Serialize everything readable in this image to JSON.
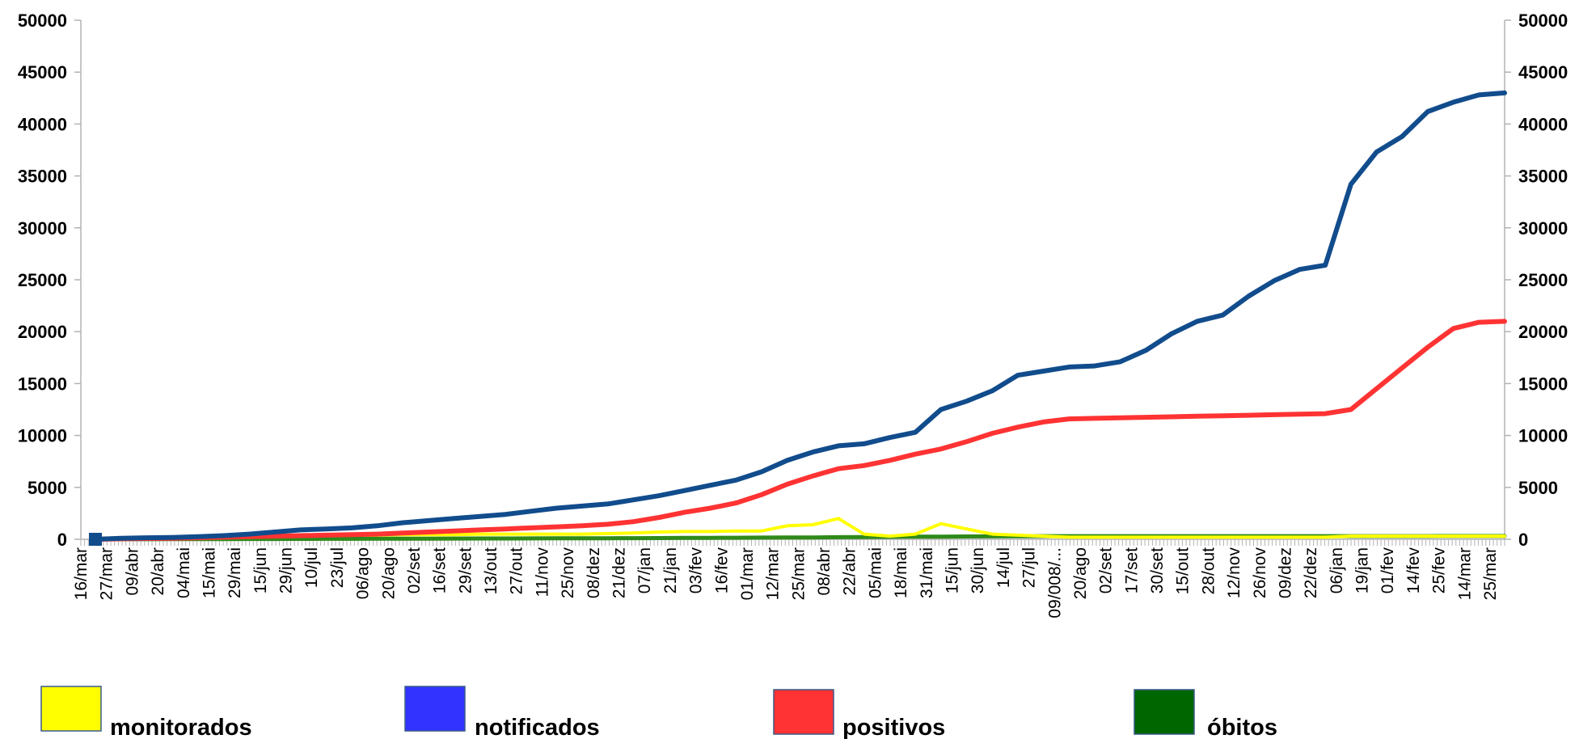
{
  "chart_data": {
    "type": "line",
    "title": "",
    "xlabel": "",
    "ylabel": "",
    "ylim": [
      0,
      50000
    ],
    "y_ticks": [
      0,
      5000,
      10000,
      15000,
      20000,
      25000,
      30000,
      35000,
      40000,
      45000,
      50000
    ],
    "y_axis_left": true,
    "y_axis_right": true,
    "grid": false,
    "legend_position": "bottom",
    "categories": [
      "16/mar",
      "27/mar",
      "09/abr",
      "20/abr",
      "04/mai",
      "15/mai",
      "29/mai",
      "15/jun",
      "29/jun",
      "10/jul",
      "23/jul",
      "06/ago",
      "20/ago",
      "02/set",
      "16/set",
      "29/set",
      "13/out",
      "27/out",
      "11/nov",
      "25/nov",
      "08/dez",
      "21/dez",
      "07/jan",
      "21/jan",
      "03/fev",
      "16/fev",
      "01/mar",
      "12/mar",
      "25/mar",
      "08/abr",
      "22/abr",
      "05/mai",
      "18/mai",
      "31/mai",
      "15/jun",
      "30/jun",
      "14/jul",
      "27/jul",
      "09/008/...",
      "20/ago",
      "02/set",
      "17/set",
      "30/set",
      "15/out",
      "28/out",
      "12/nov",
      "26/nov",
      "09/dez",
      "22/dez",
      "06/jan",
      "19/jan",
      "01/fev",
      "14/fev",
      "25/fev",
      "14/mar",
      "25/mar"
    ],
    "series": [
      {
        "name": "monitorados",
        "color": "#ffff00",
        "values": [
          0,
          150,
          150,
          150,
          150,
          200,
          250,
          300,
          350,
          350,
          400,
          400,
          450,
          450,
          450,
          500,
          500,
          500,
          500,
          500,
          550,
          600,
          700,
          750,
          750,
          800,
          800,
          1300,
          1400,
          2000,
          500,
          300,
          500,
          1500,
          1000,
          500,
          400,
          300,
          200,
          200,
          200,
          200,
          200,
          200,
          200,
          200,
          200,
          200,
          200,
          300,
          300,
          300,
          300,
          300,
          300,
          300
        ]
      },
      {
        "name": "notificados",
        "color": "#114c8c",
        "values": [
          0,
          100,
          150,
          180,
          250,
          350,
          500,
          700,
          900,
          1000,
          1100,
          1300,
          1600,
          1800,
          2000,
          2200,
          2400,
          2700,
          3000,
          3200,
          3400,
          3800,
          4200,
          4700,
          5200,
          5700,
          6500,
          7600,
          8400,
          9000,
          9200,
          9800,
          10300,
          12500,
          13300,
          14300,
          15800,
          16200,
          16600,
          16700,
          17100,
          18200,
          19800,
          21000,
          21600,
          23400,
          24900,
          26000,
          26400,
          34200,
          37300,
          38800,
          41200,
          42100,
          42800,
          43000
        ]
      },
      {
        "name": "positivos",
        "color": "#ff3333",
        "values": [
          0,
          50,
          80,
          100,
          150,
          200,
          250,
          300,
          350,
          400,
          450,
          500,
          600,
          700,
          800,
          900,
          1000,
          1100,
          1200,
          1300,
          1450,
          1700,
          2100,
          2600,
          3000,
          3500,
          4300,
          5300,
          6100,
          6800,
          7100,
          7600,
          8200,
          8700,
          9400,
          10200,
          10800,
          11300,
          11600,
          11650,
          11700,
          11750,
          11800,
          11850,
          11900,
          11950,
          12000,
          12050,
          12100,
          12500,
          14500,
          16500,
          18500,
          20300,
          20900,
          21000
        ]
      },
      {
        "name": "óbitos",
        "color": "#2e8a1a",
        "values": [
          0,
          5,
          10,
          15,
          20,
          25,
          30,
          35,
          40,
          45,
          50,
          55,
          60,
          65,
          70,
          75,
          80,
          85,
          90,
          95,
          100,
          110,
          120,
          130,
          140,
          150,
          160,
          170,
          180,
          200,
          220,
          240,
          250,
          260,
          270,
          280,
          290,
          300,
          300,
          300,
          300,
          300,
          300,
          300,
          300,
          300,
          300,
          300,
          300,
          300,
          300,
          300,
          300,
          310,
          310,
          310
        ]
      }
    ]
  },
  "legend_items": [
    {
      "label": "monitorados",
      "swatch_color": "#ffff00"
    },
    {
      "label": "notificados",
      "swatch_color": "#3333ff"
    },
    {
      "label": "positivos",
      "swatch_color": "#ff3333"
    },
    {
      "label": "óbitos",
      "swatch_color": "#006600"
    }
  ]
}
